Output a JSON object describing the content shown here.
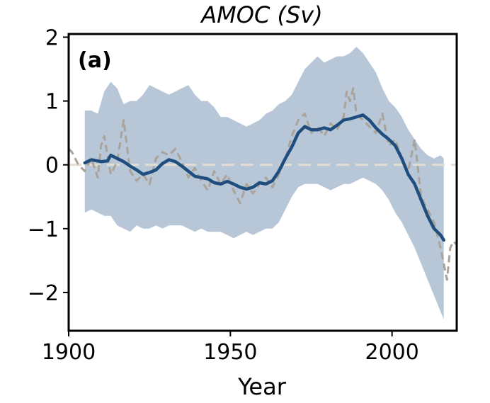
{
  "chart_data": {
    "type": "line",
    "title": "AMOC (Sv)",
    "panel_label": "(a)",
    "xlabel": "Year",
    "ylabel": "",
    "xlim": [
      1900,
      2020
    ],
    "ylim": [
      -2.6,
      2.05
    ],
    "xticks": [
      1900,
      1950,
      2000
    ],
    "xtick_labels": [
      "1900",
      "1950",
      "2000"
    ],
    "yticks": [
      -2,
      -1,
      0,
      1,
      2
    ],
    "ytick_labels": [
      "−2",
      "−1",
      "0",
      "1",
      "2"
    ],
    "grid": false,
    "legend": "none",
    "zero_line": 0,
    "colors": {
      "mean": "#1f4e7e",
      "band": "#b7c7d8",
      "dashed": "#aaa399",
      "zero": "#e3ddd3"
    },
    "series": [
      {
        "style": "solid",
        "x": [
          1905,
          1907,
          1910,
          1912,
          1913,
          1915,
          1917,
          1919,
          1921,
          1923,
          1925,
          1927,
          1929,
          1931,
          1933,
          1935,
          1937,
          1939,
          1941,
          1943,
          1945,
          1947,
          1949,
          1951,
          1953,
          1955,
          1957,
          1959,
          1961,
          1963,
          1965,
          1967,
          1969,
          1971,
          1973,
          1975,
          1977,
          1979,
          1981,
          1983,
          1985,
          1987,
          1989,
          1991,
          1993,
          1995,
          1997,
          1999,
          2001,
          2003,
          2005,
          2007,
          2009,
          2011,
          2013,
          2015,
          2016
        ],
        "y": [
          0.03,
          0.08,
          0.05,
          0.06,
          0.15,
          0.1,
          0.05,
          -0.02,
          -0.08,
          -0.15,
          -0.12,
          -0.08,
          0.02,
          0.08,
          0.05,
          -0.02,
          -0.1,
          -0.18,
          -0.2,
          -0.22,
          -0.28,
          -0.3,
          -0.26,
          -0.3,
          -0.35,
          -0.38,
          -0.35,
          -0.28,
          -0.3,
          -0.25,
          -0.1,
          0.1,
          0.28,
          0.5,
          0.6,
          0.55,
          0.55,
          0.58,
          0.55,
          0.62,
          0.7,
          0.72,
          0.75,
          0.78,
          0.7,
          0.58,
          0.48,
          0.4,
          0.3,
          0.1,
          -0.15,
          -0.3,
          -0.55,
          -0.8,
          -1.0,
          -1.1,
          -1.18
        ]
      },
      {
        "style": "dashed",
        "x": [
          1900,
          1901,
          1903,
          1905,
          1907,
          1909,
          1910,
          1911,
          1913,
          1915,
          1917,
          1919,
          1921,
          1923,
          1925,
          1927,
          1929,
          1931,
          1933,
          1935,
          1937,
          1939,
          1941,
          1943,
          1945,
          1947,
          1949,
          1951,
          1953,
          1955,
          1957,
          1959,
          1961,
          1963,
          1965,
          1967,
          1969,
          1971,
          1973,
          1975,
          1977,
          1979,
          1981,
          1983,
          1985,
          1986,
          1987,
          1988,
          1989,
          1991,
          1993,
          1995,
          1997,
          1999,
          2001,
          2003,
          2005,
          2007,
          2009,
          2011,
          2013,
          2015,
          2016,
          2017,
          2018,
          2019,
          2020
        ],
        "y": [
          0.25,
          0.2,
          0.0,
          -0.1,
          0.1,
          -0.2,
          0.3,
          0.45,
          -0.15,
          0.05,
          0.7,
          -0.1,
          -0.25,
          -0.15,
          -0.3,
          0.1,
          0.2,
          0.15,
          0.25,
          0.05,
          -0.2,
          -0.05,
          -0.25,
          -0.4,
          -0.1,
          -0.3,
          -0.15,
          -0.4,
          -0.6,
          -0.3,
          -0.45,
          -0.3,
          -0.2,
          -0.35,
          -0.15,
          0.1,
          0.45,
          0.7,
          0.8,
          0.5,
          0.6,
          0.45,
          0.65,
          0.55,
          0.75,
          1.15,
          1.0,
          1.2,
          0.8,
          0.7,
          0.6,
          0.5,
          0.8,
          0.3,
          0.4,
          0.1,
          -0.1,
          0.4,
          -0.5,
          -0.7,
          -0.9,
          -1.3,
          -1.55,
          -1.8,
          -1.3,
          -1.2,
          -1.25
        ]
      }
    ],
    "band": {
      "x": [
        1905,
        1907,
        1909,
        1911,
        1913,
        1915,
        1917,
        1919,
        1921,
        1923,
        1925,
        1927,
        1929,
        1931,
        1933,
        1935,
        1937,
        1939,
        1941,
        1943,
        1945,
        1947,
        1949,
        1951,
        1953,
        1955,
        1957,
        1959,
        1961,
        1963,
        1965,
        1967,
        1969,
        1971,
        1973,
        1975,
        1977,
        1979,
        1981,
        1983,
        1985,
        1987,
        1989,
        1991,
        1993,
        1995,
        1997,
        1999,
        2001,
        2003,
        2005,
        2007,
        2009,
        2011,
        2013,
        2015,
        2016
      ],
      "upper": [
        0.85,
        0.85,
        0.8,
        1.15,
        1.3,
        1.2,
        0.95,
        1.0,
        1.0,
        1.1,
        1.25,
        1.2,
        1.15,
        1.1,
        1.15,
        1.2,
        1.25,
        1.1,
        1.0,
        1.0,
        0.9,
        0.75,
        0.75,
        0.7,
        0.65,
        0.6,
        0.65,
        0.7,
        0.8,
        0.85,
        0.95,
        1.0,
        1.1,
        1.3,
        1.5,
        1.6,
        1.7,
        1.6,
        1.65,
        1.7,
        1.7,
        1.75,
        1.85,
        1.75,
        1.6,
        1.45,
        1.2,
        1.0,
        0.9,
        0.75,
        0.55,
        0.4,
        0.25,
        0.15,
        0.1,
        0.15,
        0.1
      ],
      "lower": [
        -0.75,
        -0.7,
        -0.75,
        -0.8,
        -0.8,
        -0.95,
        -1.0,
        -1.05,
        -0.95,
        -1.0,
        -1.0,
        -0.95,
        -1.0,
        -0.95,
        -0.95,
        -0.95,
        -1.0,
        -1.05,
        -1.0,
        -1.05,
        -1.05,
        -1.05,
        -1.1,
        -1.15,
        -1.1,
        -1.05,
        -1.1,
        -1.05,
        -1.0,
        -1.0,
        -0.9,
        -0.7,
        -0.5,
        -0.35,
        -0.3,
        -0.3,
        -0.3,
        -0.35,
        -0.4,
        -0.35,
        -0.3,
        -0.3,
        -0.25,
        -0.2,
        -0.25,
        -0.3,
        -0.4,
        -0.55,
        -0.75,
        -0.9,
        -1.1,
        -1.3,
        -1.55,
        -1.8,
        -2.05,
        -2.3,
        -2.42
      ]
    }
  }
}
